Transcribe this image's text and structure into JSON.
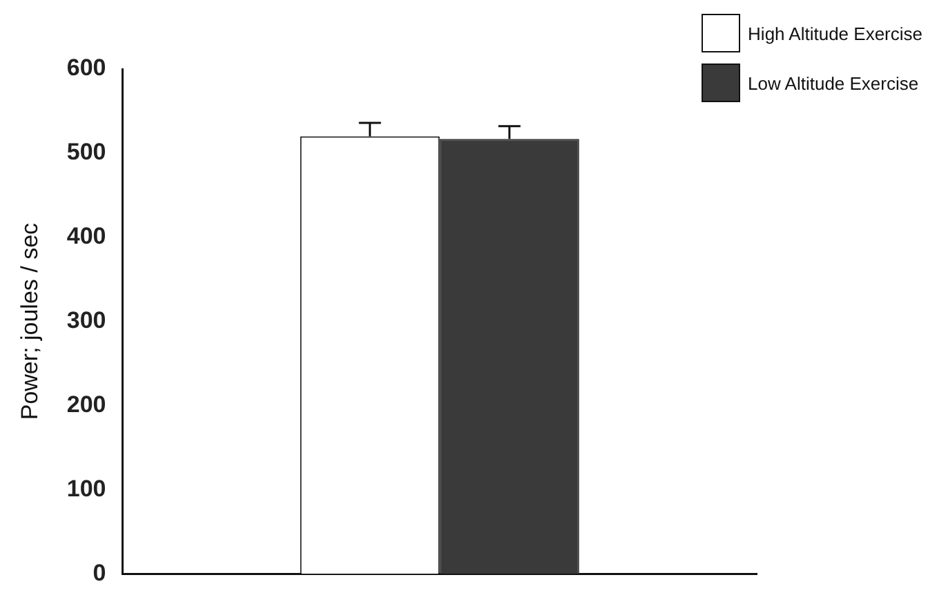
{
  "chart_data": {
    "type": "bar",
    "ylabel": "Power; joules / sec",
    "categories": [
      null
    ],
    "series": [
      {
        "name": "High Altitude Exercise",
        "color": "#ffffff",
        "values": [
          520
        ],
        "errors": [
          [
            520,
            536
          ]
        ]
      },
      {
        "name": "Low Altitude Exercise",
        "color": "#3a3a3a",
        "values": [
          517
        ],
        "errors": [
          [
            517,
            532
          ]
        ]
      }
    ],
    "ylim": [
      0,
      600
    ],
    "yticks": [
      0,
      100,
      200,
      300,
      400,
      500,
      600
    ],
    "grid": false,
    "legend": "top right"
  }
}
